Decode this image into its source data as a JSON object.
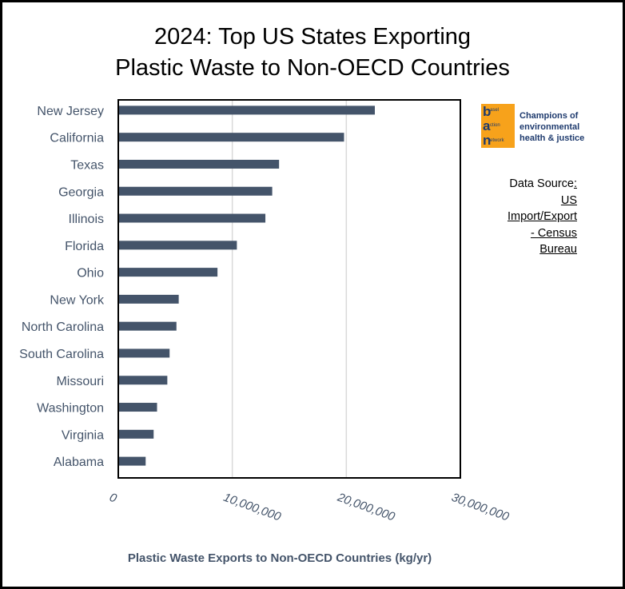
{
  "title_line1": "2024: Top US States Exporting",
  "title_line2": "Plastic Waste to Non-OECD Countries",
  "logo": {
    "letters": [
      "b",
      "a",
      "n"
    ],
    "words": [
      "asel",
      "ction",
      "etwork"
    ],
    "tagline": "Champions of environmental health & justice",
    "color_bg": "#f7a21b",
    "color_text": "#1f3b6e"
  },
  "source": {
    "line1_prefix": "Data Source",
    "line1_suffix": ":",
    "line2": "US",
    "line3": "Import/Export",
    "line4": "- Census",
    "line5": "Bureau"
  },
  "chart_data": {
    "type": "bar",
    "orientation": "horizontal",
    "title": "2024: Top US States Exporting Plastic Waste to Non-OECD Countries",
    "xlabel": "Plastic Waste Exports to Non-OECD Countries (kg/yr)",
    "ylabel": "",
    "categories": [
      "New Jersey",
      "California",
      "Texas",
      "Georgia",
      "Illinois",
      "Florida",
      "Ohio",
      "New York",
      "North Carolina",
      "South Carolina",
      "Missouri",
      "Washington",
      "Virginia",
      "Alabama"
    ],
    "values": [
      22500000,
      19800000,
      14100000,
      13500000,
      12900000,
      10400000,
      8700000,
      5300000,
      5100000,
      4500000,
      4300000,
      3400000,
      3100000,
      2400000
    ],
    "xlim": [
      0,
      30000000
    ],
    "ticks": [
      0,
      10000000,
      20000000,
      30000000
    ],
    "tick_labels": [
      "0",
      "10,000,000",
      "20,000,000",
      "30,000,000"
    ],
    "grid": "vertical",
    "bar_color": "#44546a",
    "grid_color": "#d9d9d9"
  }
}
